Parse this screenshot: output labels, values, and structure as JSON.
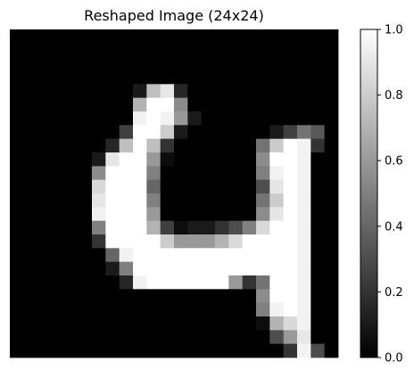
{
  "chart_data": {
    "type": "heatmap",
    "title": "Reshaped Image (24x24)",
    "xlabel": "",
    "ylabel": "",
    "axes_visible": false,
    "colormap": "gray",
    "vmin": 0.0,
    "vmax": 1.0,
    "colorbar": {
      "ticks": [
        0.0,
        0.2,
        0.4,
        0.6,
        0.8,
        1.0
      ],
      "tick_labels": [
        "0.0",
        "0.2",
        "0.4",
        "0.6",
        "0.8",
        "1.0"
      ],
      "placement": "right"
    },
    "grid_size": [
      24,
      24
    ],
    "matrix": [
      [
        0,
        0,
        0,
        0,
        0,
        0,
        0,
        0,
        0,
        0,
        0,
        0,
        0,
        0,
        0,
        0,
        0,
        0,
        0,
        0,
        0,
        0,
        0,
        0
      ],
      [
        0,
        0,
        0,
        0,
        0,
        0,
        0,
        0,
        0,
        0,
        0,
        0,
        0,
        0,
        0,
        0,
        0,
        0,
        0,
        0,
        0,
        0,
        0,
        0
      ],
      [
        0,
        0,
        0,
        0,
        0,
        0,
        0,
        0,
        0,
        0,
        0,
        0,
        0,
        0,
        0,
        0,
        0,
        0,
        0,
        0,
        0,
        0,
        0,
        0
      ],
      [
        0,
        0,
        0,
        0,
        0,
        0,
        0,
        0,
        0,
        0,
        0,
        0,
        0,
        0,
        0,
        0,
        0,
        0,
        0,
        0,
        0,
        0,
        0,
        0
      ],
      [
        0,
        0,
        0,
        0,
        0,
        0,
        0,
        0,
        0,
        0.1,
        0.75,
        0.9,
        0.15,
        0,
        0,
        0,
        0,
        0,
        0,
        0,
        0,
        0,
        0,
        0
      ],
      [
        0,
        0,
        0,
        0,
        0,
        0,
        0,
        0,
        0,
        0.7,
        1,
        1,
        0.55,
        0,
        0,
        0,
        0,
        0,
        0,
        0,
        0,
        0,
        0,
        0
      ],
      [
        0,
        0,
        0,
        0,
        0,
        0,
        0,
        0,
        0,
        0.95,
        1,
        0.95,
        0.6,
        0.1,
        0,
        0,
        0,
        0,
        0,
        0,
        0,
        0,
        0,
        0
      ],
      [
        0,
        0,
        0,
        0,
        0,
        0,
        0,
        0,
        0.25,
        1,
        1,
        0.8,
        0.1,
        0,
        0,
        0,
        0,
        0,
        0,
        0.1,
        0.25,
        0.45,
        0.35,
        0
      ],
      [
        0,
        0,
        0,
        0,
        0,
        0,
        0,
        0.15,
        0.75,
        1,
        0.75,
        0.2,
        0,
        0,
        0,
        0,
        0,
        0,
        0.45,
        0.8,
        1,
        0.95,
        0.2,
        0
      ],
      [
        0,
        0,
        0,
        0,
        0,
        0,
        0.1,
        0.9,
        1,
        1,
        0.6,
        0.05,
        0,
        0,
        0,
        0,
        0,
        0,
        0.55,
        1,
        1,
        0.95,
        0,
        0
      ],
      [
        0,
        0,
        0,
        0,
        0,
        0,
        0.55,
        1,
        1,
        1,
        0.5,
        0,
        0,
        0,
        0,
        0,
        0,
        0,
        0.5,
        0.95,
        1,
        0.95,
        0,
        0
      ],
      [
        0,
        0,
        0,
        0,
        0,
        0,
        0.85,
        1,
        1,
        1,
        0.4,
        0,
        0,
        0,
        0,
        0,
        0,
        0,
        0.3,
        0.9,
        1,
        0.95,
        0,
        0
      ],
      [
        0,
        0,
        0,
        0,
        0,
        0,
        0.9,
        1,
        1,
        1,
        0.5,
        0,
        0,
        0,
        0,
        0,
        0,
        0,
        0.45,
        0.8,
        1,
        0.95,
        0,
        0
      ],
      [
        0,
        0,
        0,
        0,
        0,
        0,
        0.95,
        1,
        1,
        1,
        0.6,
        0,
        0,
        0,
        0,
        0,
        0,
        0,
        0.55,
        0.9,
        1,
        0.95,
        0,
        0
      ],
      [
        0,
        0,
        0,
        0,
        0,
        0,
        0.5,
        1,
        1,
        1,
        0.7,
        0.25,
        0.05,
        0.1,
        0.1,
        0.2,
        0.3,
        0.5,
        0.85,
        1,
        1,
        0.95,
        0,
        0
      ],
      [
        0,
        0,
        0,
        0,
        0,
        0,
        0.2,
        1,
        1,
        1,
        1,
        0.8,
        0.6,
        0.6,
        0.6,
        0.7,
        0.85,
        1,
        1,
        1,
        1,
        0.95,
        0,
        0
      ],
      [
        0,
        0,
        0,
        0,
        0,
        0,
        0,
        0.4,
        0.95,
        1,
        1,
        1,
        1,
        1,
        1,
        1,
        1,
        1,
        1,
        1,
        1,
        0.95,
        0,
        0
      ],
      [
        0,
        0,
        0,
        0,
        0,
        0,
        0,
        0.1,
        0.5,
        1,
        1,
        1,
        1,
        1,
        1,
        1,
        1,
        1,
        1,
        1,
        1,
        0.95,
        0,
        0
      ],
      [
        0,
        0,
        0,
        0,
        0,
        0,
        0,
        0,
        0.15,
        0.95,
        1,
        1,
        1,
        1,
        1,
        1,
        0.6,
        0.2,
        0.45,
        1,
        1,
        0.95,
        0,
        0
      ],
      [
        0,
        0,
        0,
        0,
        0,
        0,
        0,
        0,
        0,
        0,
        0,
        0,
        0,
        0,
        0,
        0,
        0,
        0,
        0.55,
        1,
        1,
        0.95,
        0,
        0
      ],
      [
        0,
        0,
        0,
        0,
        0,
        0,
        0,
        0,
        0,
        0,
        0,
        0,
        0,
        0,
        0,
        0,
        0,
        0,
        0.5,
        0.95,
        1,
        0.95,
        0,
        0
      ],
      [
        0,
        0,
        0,
        0,
        0,
        0,
        0,
        0,
        0,
        0,
        0,
        0,
        0,
        0,
        0,
        0,
        0,
        0,
        0.05,
        0.7,
        0.85,
        0.95,
        0,
        0
      ],
      [
        0,
        0,
        0,
        0,
        0,
        0,
        0,
        0,
        0,
        0,
        0,
        0,
        0,
        0,
        0,
        0,
        0,
        0,
        0,
        0.3,
        0.6,
        0.9,
        0,
        0
      ],
      [
        0,
        0,
        0,
        0,
        0,
        0,
        0,
        0,
        0,
        0,
        0,
        0,
        0,
        0,
        0,
        0,
        0,
        0,
        0,
        0,
        0.2,
        0.95,
        0.3,
        0
      ]
    ]
  }
}
